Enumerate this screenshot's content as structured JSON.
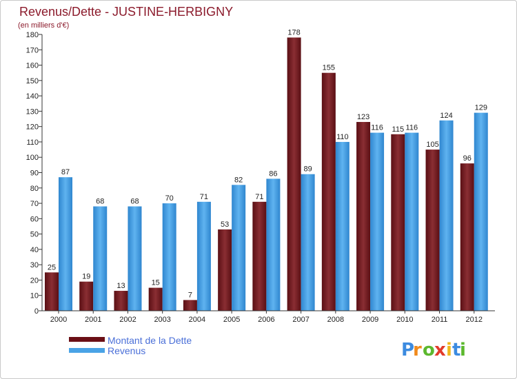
{
  "chart_data": {
    "type": "bar",
    "title": "Revenus/Dette - JUSTINE-HERBIGNY",
    "subtitle": "(en milliers d'€)",
    "categories": [
      "2000",
      "2001",
      "2002",
      "2003",
      "2004",
      "2005",
      "2006",
      "2007",
      "2008",
      "2009",
      "2010",
      "2011",
      "2012"
    ],
    "series": [
      {
        "name": "Montant de la Dette",
        "color": "#7a1f24",
        "values": [
          25,
          19,
          13,
          15,
          7,
          53,
          71,
          178,
          155,
          123,
          115,
          105,
          96
        ]
      },
      {
        "name": "Revenus",
        "color": "#4aa3e6",
        "values": [
          87,
          68,
          68,
          70,
          71,
          82,
          86,
          89,
          110,
          116,
          116,
          124,
          129
        ]
      }
    ],
    "ylim": [
      0,
      180
    ],
    "ytick_step": 10,
    "xlabel": "",
    "ylabel": "",
    "grid": false,
    "legend_position": "bottom-left"
  },
  "logo": {
    "letters": [
      "P",
      "r",
      "o",
      "x",
      "i",
      "t",
      "i"
    ],
    "colors": [
      "#3c8be0",
      "#f08a1c",
      "#5cb82e",
      "#e23b2a",
      "#f0b81c",
      "#3c8be0",
      "#5cb82e"
    ]
  }
}
